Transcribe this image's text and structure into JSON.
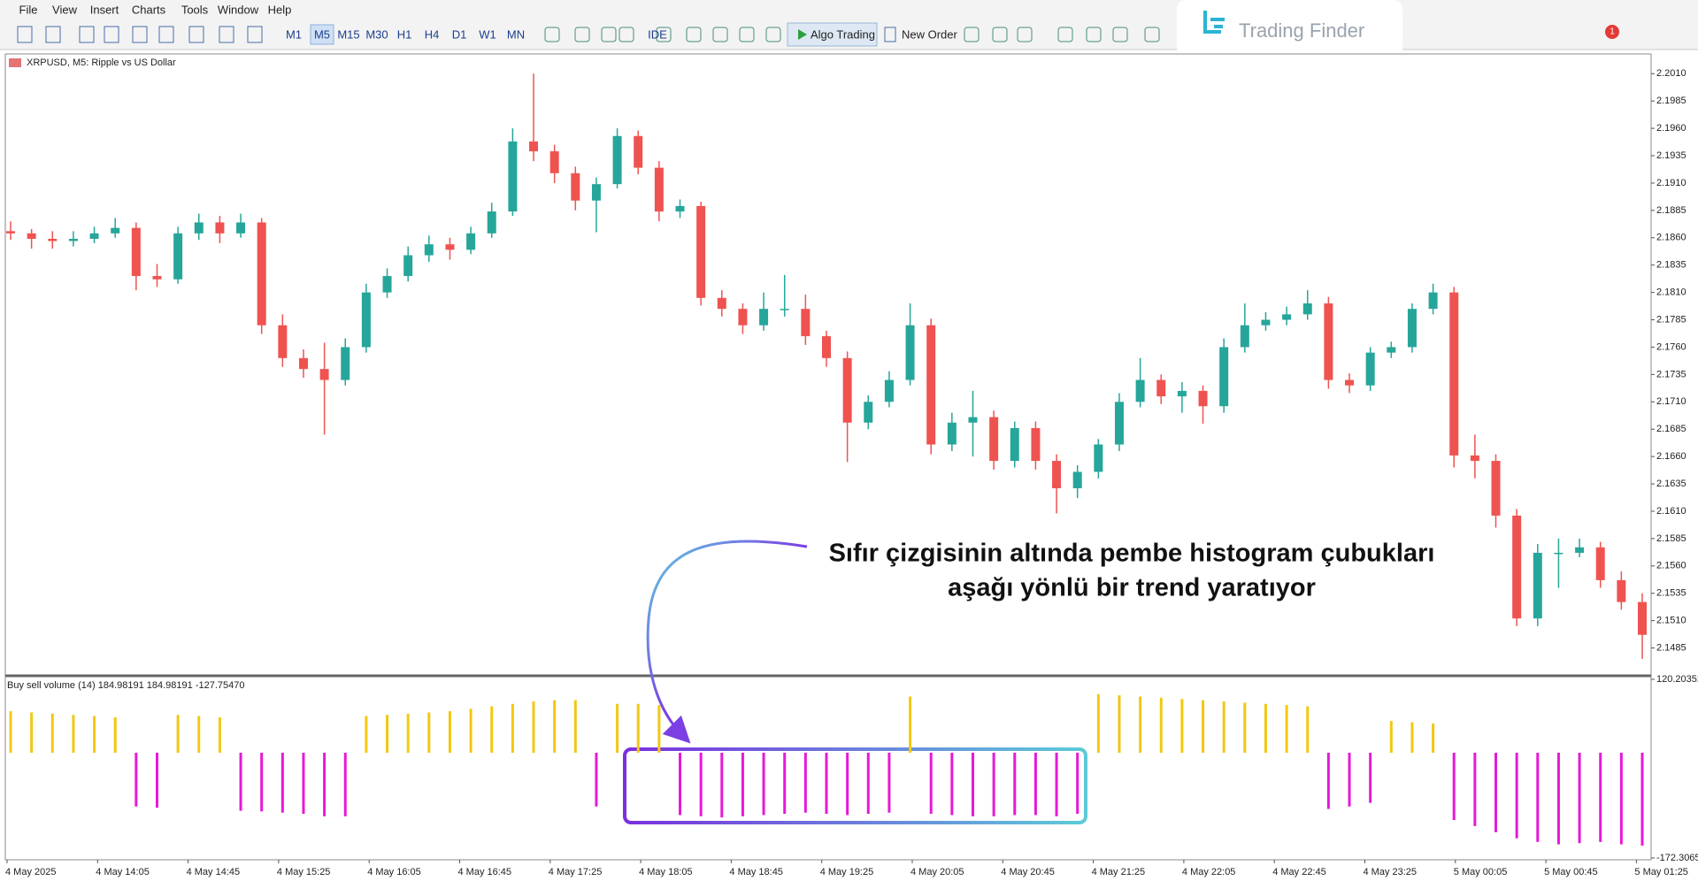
{
  "menu": [
    "File",
    "View",
    "Insert",
    "Charts",
    "Tools",
    "Window",
    "Help"
  ],
  "timeframes": [
    "M1",
    "M5",
    "M15",
    "M30",
    "H1",
    "H4",
    "D1",
    "W1",
    "MN"
  ],
  "toolbar": {
    "ide": "IDE",
    "algo_trading": "Algo Trading",
    "new_order": "New Order",
    "notifications": "1"
  },
  "logo": "Trading Finder",
  "annotation": {
    "line1": "Sıfır çizgisinin altında pembe histogram çubukları",
    "line2": "aşağı yönlü bir trend yaratıyor"
  },
  "time_axis": [
    "4 May 2025",
    "4 May 14:05",
    "4 May 14:45",
    "4 May 15:25",
    "4 May 16:05",
    "4 May 16:45",
    "4 May 17:25",
    "4 May 18:05",
    "4 May 18:45",
    "4 May 19:25",
    "4 May 20:05",
    "4 May 20:45",
    "4 May 21:25",
    "4 May 22:05",
    "4 May 22:45",
    "4 May 23:25",
    "5 May 00:05",
    "5 May 00:45",
    "5 May 01:25"
  ],
  "chart_data": [
    {
      "type": "candlestick",
      "title": "XRPUSD, M5:  Ripple vs US Dollar",
      "up_color": "#26a69a",
      "down_color": "#ef5350",
      "ylim": [
        2.1462,
        2.2028
      ],
      "yticks": [
        {
          "value": 2.201,
          "label": "2.2010"
        },
        2.1985,
        {
          "value": 2.196,
          "label": "2.1960"
        },
        2.1935,
        {
          "value": 2.191,
          "label": "2.1910"
        },
        2.1885,
        {
          "value": 2.186,
          "label": "2.1860"
        },
        2.1835,
        {
          "value": 2.181,
          "label": "2.1810"
        },
        2.1785,
        {
          "value": 2.176,
          "label": "2.1760"
        },
        2.1735,
        {
          "value": 2.171,
          "label": "2.1710"
        },
        2.1685,
        {
          "value": 2.166,
          "label": "2.1660"
        },
        2.1635,
        {
          "value": 2.161,
          "label": "2.1610"
        },
        2.1585,
        {
          "value": 2.156,
          "label": "2.1560"
        },
        2.1535,
        {
          "value": 2.151,
          "label": "2.1510"
        },
        2.1485
      ],
      "ohlc": [
        [
          2.1866,
          2.1875,
          2.1858,
          2.1864
        ],
        [
          2.1864,
          2.1868,
          2.185,
          2.1859
        ],
        [
          2.1859,
          2.1866,
          2.185,
          2.1857
        ],
        [
          2.1857,
          2.1866,
          2.1852,
          2.1859
        ],
        [
          2.1859,
          2.187,
          2.1855,
          2.1864
        ],
        [
          2.1864,
          2.1878,
          2.186,
          2.1869
        ],
        [
          2.1869,
          2.1874,
          2.1812,
          2.1825
        ],
        [
          2.1825,
          2.1836,
          2.1815,
          2.1822
        ],
        [
          2.1822,
          2.187,
          2.1818,
          2.1864
        ],
        [
          2.1864,
          2.1882,
          2.1858,
          2.1874
        ],
        [
          2.1874,
          2.188,
          2.1855,
          2.1864
        ],
        [
          2.1864,
          2.1882,
          2.186,
          2.1874
        ],
        [
          2.1874,
          2.1878,
          2.1772,
          2.178
        ],
        [
          2.178,
          2.179,
          2.1742,
          2.175
        ],
        [
          2.175,
          2.1758,
          2.1732,
          2.174
        ],
        [
          2.174,
          2.1764,
          2.168,
          2.173
        ],
        [
          2.173,
          2.1768,
          2.1725,
          2.176
        ],
        [
          2.176,
          2.1818,
          2.1755,
          2.181
        ],
        [
          2.181,
          2.1832,
          2.1805,
          2.1825
        ],
        [
          2.1825,
          2.1852,
          2.182,
          2.1844
        ],
        [
          2.1844,
          2.1862,
          2.1838,
          2.1854
        ],
        [
          2.1854,
          2.186,
          2.184,
          2.1849
        ],
        [
          2.1849,
          2.187,
          2.1845,
          2.1864
        ],
        [
          2.1864,
          2.1892,
          2.186,
          2.1884
        ],
        [
          2.1884,
          2.196,
          2.188,
          2.1948
        ],
        [
          2.1948,
          2.201,
          2.193,
          2.1939
        ],
        [
          2.1939,
          2.1945,
          2.191,
          2.1919
        ],
        [
          2.1919,
          2.1925,
          2.1885,
          2.1894
        ],
        [
          2.1894,
          2.1915,
          2.1865,
          2.1909
        ],
        [
          2.1909,
          2.196,
          2.1905,
          2.1953
        ],
        [
          2.1953,
          2.1958,
          2.1918,
          2.1924
        ],
        [
          2.1924,
          2.193,
          2.1875,
          2.1884
        ],
        [
          2.1884,
          2.1895,
          2.1878,
          2.1889
        ],
        [
          2.1889,
          2.1893,
          2.1798,
          2.1805
        ],
        [
          2.1805,
          2.1812,
          2.1788,
          2.1795
        ],
        [
          2.1795,
          2.18,
          2.1772,
          2.178
        ],
        [
          2.178,
          2.181,
          2.1775,
          2.1795
        ],
        [
          2.1795,
          2.1826,
          2.1788,
          2.1795
        ],
        [
          2.1795,
          2.1808,
          2.1762,
          2.177
        ],
        [
          2.177,
          2.1775,
          2.1742,
          2.175
        ],
        [
          2.175,
          2.1756,
          2.1655,
          2.1691
        ],
        [
          2.1691,
          2.1716,
          2.1685,
          2.171
        ],
        [
          2.171,
          2.1738,
          2.1705,
          2.173
        ],
        [
          2.173,
          2.18,
          2.1725,
          2.178
        ],
        [
          2.178,
          2.1786,
          2.1662,
          2.1671
        ],
        [
          2.1671,
          2.17,
          2.1665,
          2.1691
        ],
        [
          2.1691,
          2.172,
          2.166,
          2.1696
        ],
        [
          2.1696,
          2.1702,
          2.1648,
          2.1656
        ],
        [
          2.1656,
          2.1692,
          2.165,
          2.1686
        ],
        [
          2.1686,
          2.1692,
          2.1648,
          2.1656
        ],
        [
          2.1656,
          2.1662,
          2.1608,
          2.1631
        ],
        [
          2.1631,
          2.1652,
          2.1622,
          2.1646
        ],
        [
          2.1646,
          2.1676,
          2.164,
          2.1671
        ],
        [
          2.1671,
          2.1718,
          2.1665,
          2.171
        ],
        [
          2.171,
          2.175,
          2.1705,
          2.173
        ],
        [
          2.173,
          2.1735,
          2.1708,
          2.1715
        ],
        [
          2.1715,
          2.1728,
          2.17,
          2.172
        ],
        [
          2.172,
          2.1725,
          2.169,
          2.1706
        ],
        [
          2.1706,
          2.1768,
          2.17,
          2.176
        ],
        [
          2.176,
          2.18,
          2.1755,
          2.178
        ],
        [
          2.178,
          2.1792,
          2.1775,
          2.1785
        ],
        [
          2.1785,
          2.1797,
          2.178,
          2.179
        ],
        [
          2.179,
          2.1812,
          2.1785,
          2.18
        ],
        [
          2.18,
          2.1806,
          2.1722,
          2.173
        ],
        [
          2.173,
          2.1736,
          2.1718,
          2.1725
        ],
        [
          2.1725,
          2.176,
          2.172,
          2.1755
        ],
        [
          2.1755,
          2.1765,
          2.175,
          2.176
        ],
        [
          2.176,
          2.18,
          2.1755,
          2.1795
        ],
        [
          2.1795,
          2.1818,
          2.179,
          2.181
        ],
        [
          2.181,
          2.1815,
          2.165,
          2.1661
        ],
        [
          2.1661,
          2.168,
          2.164,
          2.1656
        ],
        [
          2.1656,
          2.1662,
          2.1595,
          2.1606
        ],
        [
          2.1606,
          2.1612,
          2.1505,
          2.1512
        ],
        [
          2.1512,
          2.158,
          2.1505,
          2.1572
        ],
        [
          2.1572,
          2.1585,
          2.154,
          2.1572
        ],
        [
          2.1572,
          2.1585,
          2.1568,
          2.1577
        ],
        [
          2.1577,
          2.1582,
          2.154,
          2.1547
        ],
        [
          2.1547,
          2.1555,
          2.152,
          2.1527
        ],
        [
          2.1527,
          2.1535,
          2.1475,
          2.1497
        ]
      ]
    },
    {
      "type": "bar",
      "title": "Buy sell volume (14) 184.98191 184.98191 -127.75470",
      "positive_color": "#f2c811",
      "negative_color": "#e619d8",
      "ylim": [
        -172.3065,
        120.20352
      ],
      "yticks": [
        -172.3065,
        120.20352
      ],
      "values": [
        68,
        66,
        64,
        62,
        60,
        58,
        -88,
        -90,
        62,
        60,
        58,
        -95,
        -96,
        -98,
        -100,
        -104,
        -104,
        60,
        62,
        64,
        66,
        68,
        72,
        76,
        80,
        84,
        86,
        86,
        -88,
        80,
        80,
        78,
        -102,
        -104,
        -106,
        -104,
        -102,
        -100,
        -98,
        -100,
        -102,
        -100,
        -98,
        92,
        -100,
        -102,
        -104,
        -104,
        -102,
        -102,
        -104,
        -100,
        96,
        94,
        92,
        90,
        88,
        86,
        84,
        82,
        80,
        78,
        76,
        -92,
        -88,
        -82,
        52,
        50,
        48,
        -110,
        -120,
        -130,
        -140,
        -146,
        -150,
        -148,
        -146,
        -150,
        -152
      ]
    }
  ]
}
